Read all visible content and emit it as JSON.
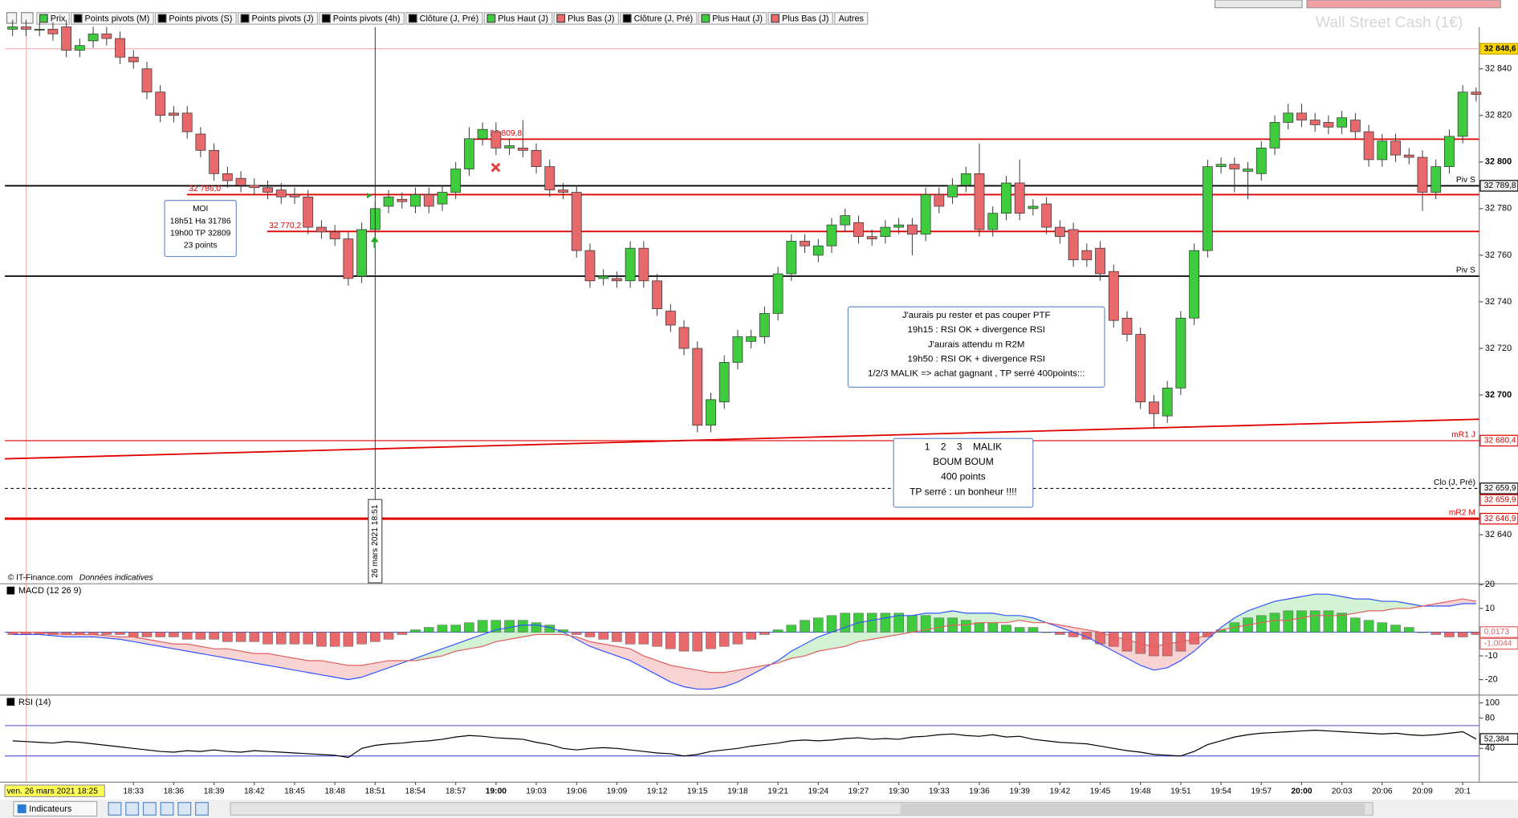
{
  "toolbar": {
    "items": [
      {
        "label": "Prix",
        "color": "#3ecb3e"
      },
      {
        "label": "Points pivots (M)",
        "color": "#000000"
      },
      {
        "label": "Points pivots (S)",
        "color": "#000000"
      },
      {
        "label": "Points pivots (J)",
        "color": "#000000"
      },
      {
        "label": "Points pivots (4h)",
        "color": "#000000"
      },
      {
        "label": "Clôture (J, Pré)",
        "color": "#000000"
      },
      {
        "label": "Plus Haut (J)",
        "color": "#3ecb3e"
      },
      {
        "label": "Plus Bas (J)",
        "color": "#e8696b"
      },
      {
        "label": "Clôture (J, Pré)",
        "color": "#000000"
      },
      {
        "label": "Plus Haut (J)",
        "color": "#3ecb3e"
      },
      {
        "label": "Plus Bas (J)",
        "color": "#e8696b"
      },
      {
        "label": "Autres"
      }
    ]
  },
  "footer": {
    "copyright": "© IT-Finance.com",
    "note": "Données indicatives",
    "date_label": "ven. 26 mars 2021 18:25",
    "button": "Indicateurs"
  },
  "chart_data": [
    {
      "type": "candlestick",
      "title": "Wall Street Cash (1€)",
      "categories": [
        null,
        null,
        null,
        null,
        null,
        null,
        null,
        null,
        null,
        "18:33",
        null,
        null,
        "18:36",
        null,
        null,
        "18:39",
        null,
        null,
        "18:42",
        null,
        null,
        "18:45",
        null,
        null,
        "18:48",
        null,
        null,
        "18:51",
        null,
        null,
        "18:54",
        null,
        null,
        "18:57",
        null,
        null,
        "19:00",
        null,
        null,
        "19:03",
        null,
        null,
        "19:06",
        null,
        null,
        "19:09",
        null,
        null,
        "19:12",
        null,
        null,
        "19:15",
        null,
        null,
        "19:18",
        null,
        null,
        "19:21",
        null,
        null,
        "19:24",
        null,
        null,
        "19:27",
        null,
        null,
        "19:30",
        null,
        null,
        "19:33",
        null,
        null,
        "19:36",
        null,
        null,
        "19:39",
        null,
        null,
        "19:42",
        null,
        null,
        "19:45",
        null,
        null,
        "19:48",
        null,
        null,
        "19:51",
        null,
        null,
        "19:54",
        null,
        null,
        "19:57",
        null,
        null,
        "20:00",
        null,
        null,
        "20:03",
        null,
        null,
        "20:06",
        null,
        null,
        "20:09",
        null,
        null,
        "20:1",
        null
      ],
      "open": [
        32857,
        32858,
        32857,
        32857,
        32858,
        32848,
        32852,
        32855,
        32853,
        32845,
        32840,
        32830,
        32821,
        32821,
        32812,
        32805,
        32795,
        32793,
        32790,
        32789,
        32788,
        32786,
        32785,
        32772,
        32770,
        32767,
        32751,
        32771,
        32781,
        32784,
        32781,
        32786,
        32782,
        32787,
        32797,
        32810,
        32813,
        32806,
        32806,
        32805,
        32798,
        32788,
        32787,
        32762,
        32750,
        32750,
        32749,
        32763,
        32749,
        32736,
        32729,
        32720,
        32687,
        32697,
        32714,
        32723,
        32725,
        32735,
        32752,
        32766,
        32760,
        32764,
        32773,
        32774,
        32768,
        32768,
        32772,
        32773,
        32769,
        32786,
        32785,
        32790,
        32795,
        32771,
        32778,
        32791,
        32780,
        32782,
        32772,
        32771,
        32762,
        32763,
        32753,
        32733,
        32726,
        32697,
        32691,
        32703,
        32733,
        32762,
        32798,
        32799,
        32796,
        32795,
        32806,
        32817,
        32821,
        32818,
        32817,
        32815,
        32818,
        32813,
        32801,
        32809,
        32803,
        32802,
        32787,
        32798,
        32811,
        32830
      ],
      "high": [
        32861,
        32861,
        32860,
        32860,
        32861,
        32853,
        32858,
        32858,
        32856,
        32848,
        32843,
        32833,
        32824,
        32824,
        32815,
        32808,
        32798,
        32796,
        32793,
        32792,
        32791,
        32789,
        32788,
        32775,
        32773,
        32770,
        32774,
        32783,
        32788,
        32787,
        32789,
        32789,
        32790,
        32800,
        32815,
        32817,
        32817,
        32810,
        32818,
        32808,
        32801,
        32791,
        32790,
        32765,
        32754,
        32753,
        32766,
        32766,
        32752,
        32739,
        32732,
        32723,
        32701,
        32717,
        32728,
        32728,
        32738,
        32755,
        32769,
        32769,
        32767,
        32776,
        32780,
        32777,
        32771,
        32775,
        32776,
        32776,
        32789,
        32789,
        32793,
        32798,
        32808,
        32781,
        32794,
        32801,
        32784,
        32785,
        32775,
        32774,
        32765,
        32766,
        32756,
        32736,
        32729,
        32700,
        32706,
        32736,
        32765,
        32801,
        32802,
        32802,
        32800,
        32809,
        32820,
        32825,
        32825,
        32821,
        32820,
        32822,
        32821,
        32816,
        32812,
        32812,
        32806,
        32805,
        32801,
        32814,
        32833,
        32832
      ],
      "low": [
        32854,
        32854,
        32854,
        32852,
        32845,
        32845,
        32849,
        32850,
        32842,
        32840,
        32827,
        32817,
        32817,
        32810,
        32802,
        32792,
        32789,
        32787,
        32786,
        32784,
        32782,
        32782,
        32769,
        32767,
        32764,
        32747,
        32748,
        32768,
        32778,
        32780,
        32778,
        32778,
        32779,
        32784,
        32794,
        32807,
        32803,
        32803,
        32802,
        32795,
        32785,
        32784,
        32759,
        32746,
        32747,
        32746,
        32746,
        32746,
        32734,
        32727,
        32717,
        32684,
        32684,
        32694,
        32711,
        32720,
        32722,
        32732,
        32749,
        32761,
        32757,
        32761,
        32770,
        32765,
        32764,
        32765,
        32769,
        32760,
        32766,
        32778,
        32782,
        32787,
        32768,
        32768,
        32775,
        32775,
        32777,
        32769,
        32765,
        32755,
        32755,
        32749,
        32729,
        32723,
        32694,
        32686,
        32688,
        32700,
        32730,
        32759,
        32795,
        32787,
        32784,
        32792,
        32803,
        32814,
        32815,
        32813,
        32812,
        32812,
        32810,
        32798,
        32798,
        32800,
        32799,
        32779,
        32784,
        32795,
        32808,
        32826
      ],
      "close": [
        32858,
        32857,
        32857,
        32855,
        32848,
        32850,
        32855,
        32853,
        32845,
        32843,
        32830,
        32820,
        32820,
        32813,
        32805,
        32795,
        32792,
        32790,
        32789,
        32787,
        32785,
        32785,
        32772,
        32770,
        32767,
        32750,
        32771,
        32780,
        32785,
        32783,
        32786,
        32781,
        32787,
        32797,
        32810,
        32814,
        32806,
        32807,
        32805,
        32798,
        32788,
        32787,
        32762,
        32749,
        32751,
        32749,
        32763,
        32749,
        32737,
        32730,
        32720,
        32687,
        32698,
        32714,
        32725,
        32725,
        32735,
        32752,
        32766,
        32764,
        32764,
        32773,
        32777,
        32768,
        32767,
        32772,
        32773,
        32769,
        32786,
        32781,
        32790,
        32795,
        32771,
        32778,
        32791,
        32778,
        32781,
        32772,
        32768,
        32758,
        32758,
        32752,
        32732,
        32726,
        32697,
        32692,
        32703,
        32733,
        32762,
        32798,
        32799,
        32797,
        32797,
        32806,
        32817,
        32821,
        32818,
        32816,
        32815,
        32819,
        32813,
        32801,
        32809,
        32803,
        32802,
        32787,
        32798,
        32811,
        32830,
        32829
      ],
      "up_color": "#3ecb3e",
      "down_color": "#e8696b",
      "ylim": [
        32619.4,
        32857.9
      ],
      "yticks": [
        {
          "value": 32840,
          "label": "32 840"
        },
        {
          "value": 32820,
          "label": "32 820"
        },
        {
          "value": 32800,
          "label": "32 800"
        },
        {
          "value": 32780,
          "label": "32 780"
        },
        {
          "value": 32760,
          "label": "32 760"
        },
        {
          "value": 32740,
          "label": "32 740"
        },
        {
          "value": 32720,
          "label": "32 720"
        },
        {
          "value": 32700,
          "label": "32 700"
        },
        {
          "value": 32640,
          "label": "32 640"
        }
      ],
      "levels": [
        {
          "value": 32848.6,
          "color": "#f5b5b5",
          "width": 1,
          "price_label": "32 848,6",
          "box": "#ffd700"
        },
        {
          "value": 32809.8,
          "color": "#e00000",
          "width": 1.5,
          "label": "32 809,8"
        },
        {
          "value": 32789.8,
          "color": "#000000",
          "width": 1.5,
          "label": "Piv S",
          "price_label": "32 789,8",
          "box": "#eeeeee"
        },
        {
          "value": 32786.0,
          "color": "#e00000",
          "width": 1.5,
          "label": "32 786,0"
        },
        {
          "value": 32770.2,
          "color": "#e00000",
          "width": 1.5,
          "label": "32 770,2"
        },
        {
          "value": 32751,
          "color": "#000000",
          "width": 1.5,
          "label": "Piv S"
        },
        {
          "value": 32680.4,
          "color": "#e00000",
          "width": 1,
          "label": "mR1 J",
          "price_label": "32 680,4",
          "box": "#ffffff"
        },
        {
          "value": 32659.9,
          "color": "#000000",
          "width": 1,
          "dashed": true,
          "label": "Clo (J, Pré)",
          "price_label": "32 659,9",
          "box": "#ffffff"
        },
        {
          "value": 32659.9,
          "color": "#e00000",
          "width": 0,
          "price_label": "32 659,9",
          "box": "#ffffff"
        },
        {
          "value": 32646.9,
          "color": "#e00000",
          "width": 2.5,
          "label": "mR2 M",
          "price_label": "32 646,9",
          "box": "#ffffff"
        }
      ],
      "trendline": {
        "values": [
          32672.6,
          32689.6
        ],
        "color": "#e00000"
      },
      "crosshair": {
        "index": 27,
        "label": "26 mars 2021 18:51"
      },
      "annotations": [
        {
          "lines": [
            "MOI",
            "18h51 Ha 31786",
            "19h00 TP 32809",
            "23 points"
          ]
        },
        {
          "lines": [
            "J'aurais pu rester et pas couper PTF",
            "19h15 : RSI OK + divergence RSI",
            "J'aurais attendu m R2M",
            "19h50 : RSI OK + divergence RSI",
            "1/2/3 MALIK => achat gagnant , TP serré 400points:::"
          ]
        },
        {
          "lines": [
            "1    2    3    MALIK",
            "BOUM BOUM",
            "400 points",
            "TP serré : un bonheur !!!!"
          ]
        }
      ]
    },
    {
      "type": "macd",
      "title": "MACD (12 26 9)",
      "histogram": [
        -1,
        -1,
        -1,
        -1,
        -1,
        -1,
        -1,
        -1,
        -1,
        -2,
        -2,
        -2,
        -2,
        -3,
        -3,
        -3,
        -4,
        -4,
        -4,
        -5,
        -5,
        -5,
        -5,
        -6,
        -6,
        -6,
        -5,
        -4,
        -3,
        -1,
        1,
        2,
        3,
        3,
        4,
        5,
        5,
        5,
        5,
        4,
        3,
        1,
        -1,
        -2,
        -3,
        -4,
        -5,
        -5,
        -6,
        -7,
        -8,
        -8,
        -7,
        -6,
        -5,
        -3,
        -1,
        1,
        3,
        5,
        6,
        7,
        8,
        8,
        8,
        8,
        8,
        7,
        7,
        6,
        6,
        5,
        4,
        4,
        3,
        2,
        2,
        0,
        -1,
        -2,
        -3,
        -5,
        -6,
        -8,
        -9,
        -10,
        -10,
        -8,
        -5,
        -2,
        1,
        4,
        6,
        7,
        8,
        9,
        9,
        9,
        9,
        8,
        6,
        5,
        4,
        3,
        2,
        0,
        -1,
        -2,
        -2,
        -1
      ],
      "macd": [
        -1,
        -1,
        -1,
        -1.5,
        -2,
        -2,
        -2,
        -2.5,
        -3,
        -4,
        -5,
        -6,
        -7,
        -8,
        -9,
        -10,
        -11,
        -12,
        -13,
        -14,
        -15,
        -16,
        -17,
        -18,
        -19,
        -20,
        -19,
        -17,
        -15,
        -13,
        -11,
        -9,
        -7,
        -5,
        -3,
        -1,
        1,
        2,
        3,
        3,
        2,
        0,
        -3,
        -6,
        -8,
        -10,
        -12,
        -15,
        -18,
        -21,
        -23,
        -24,
        -24,
        -23,
        -21,
        -18,
        -15,
        -12,
        -8,
        -5,
        -2,
        0,
        2,
        4,
        5,
        6,
        7,
        7,
        8,
        8,
        9,
        8,
        8,
        8,
        7,
        7,
        6,
        4,
        2,
        0,
        -2,
        -5,
        -8,
        -11,
        -14,
        -16,
        -15,
        -12,
        -8,
        -3,
        2,
        6,
        9,
        11,
        13,
        14,
        15,
        16,
        16,
        15,
        14,
        14,
        13,
        13,
        12,
        11,
        11,
        11,
        12,
        12
      ],
      "signal": [
        0,
        0,
        0,
        -0.5,
        -1,
        -1,
        -1,
        -1.5,
        -2,
        -2,
        -3,
        -4,
        -5,
        -5,
        -6,
        -7,
        -7,
        -8,
        -9,
        -9,
        -10,
        -11,
        -12,
        -12,
        -13,
        -14,
        -14,
        -13,
        -12,
        -12,
        -12,
        -11,
        -10,
        -8,
        -7,
        -6,
        -4,
        -3,
        -2,
        -1,
        -1,
        -1,
        -2,
        -4,
        -5,
        -6,
        -7,
        -10,
        -12,
        -14,
        -15,
        -16,
        -17,
        -17,
        -16,
        -15,
        -14,
        -13,
        -11,
        -10,
        -8,
        -7,
        -6,
        -4,
        -3,
        -2,
        -1,
        0,
        1,
        2,
        3,
        3,
        4,
        4,
        4,
        5,
        4,
        4,
        3,
        2,
        1,
        0,
        -2,
        -3,
        -5,
        -6,
        -5,
        -4,
        -3,
        -1,
        1,
        2,
        3,
        4,
        5,
        5,
        6,
        7,
        7,
        7,
        8,
        9,
        9,
        10,
        10,
        11,
        12,
        13,
        14,
        13
      ],
      "macd_color": "#3355ff",
      "signal_color": "#e06060",
      "up_color": "#3ecb3e",
      "down_color": "#e8696b",
      "ylim": [
        -26.1,
        20
      ],
      "yticks": [
        20,
        10,
        -10,
        -20
      ],
      "value_boxes": [
        {
          "value": 0.0173,
          "label": "0,0173"
        },
        {
          "value": -1.0044,
          "label": "-1,0044"
        }
      ]
    },
    {
      "type": "line",
      "title": "RSI (14)",
      "values": [
        50,
        49,
        48,
        47,
        49,
        48,
        46,
        44,
        42,
        40,
        38,
        36,
        35,
        37,
        36,
        38,
        36,
        35,
        37,
        36,
        35,
        34,
        33,
        32,
        31,
        28,
        40,
        44,
        46,
        47,
        49,
        50,
        52,
        55,
        57,
        56,
        54,
        53,
        52,
        48,
        45,
        40,
        38,
        40,
        41,
        40,
        38,
        36,
        34,
        33,
        30,
        32,
        36,
        38,
        40,
        43,
        45,
        47,
        50,
        51,
        50,
        51,
        53,
        54,
        52,
        53,
        52,
        55,
        56,
        58,
        59,
        57,
        56,
        58,
        55,
        56,
        52,
        50,
        48,
        47,
        46,
        43,
        40,
        37,
        35,
        32,
        31,
        30,
        36,
        45,
        50,
        55,
        58,
        60,
        61,
        62,
        63,
        64,
        63,
        62,
        61,
        60,
        59,
        60,
        58,
        57,
        58,
        60,
        62,
        52.384
      ],
      "color": "#000000",
      "ylim": [
        -4.5,
        109
      ],
      "yticks": [
        100,
        80,
        40
      ],
      "bands": [
        70,
        30
      ],
      "band_color": "#3333cc",
      "value_boxes": [
        {
          "value": 52.384,
          "label": "52,384"
        }
      ]
    }
  ]
}
